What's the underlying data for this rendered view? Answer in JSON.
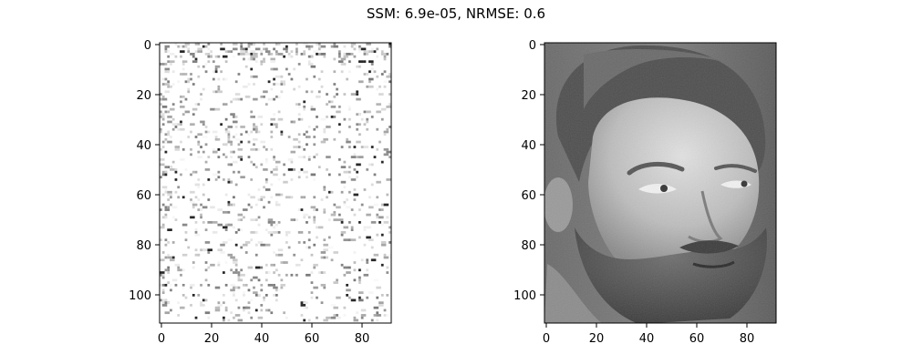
{
  "figure": {
    "title": "SSM: 6.9e-05, NRMSE: 0.6"
  },
  "panels": [
    {
      "name": "left",
      "content": "sparse-noise-image",
      "x_ticks": [
        "0",
        "20",
        "40",
        "60",
        "80"
      ],
      "y_ticks": [
        "0",
        "20",
        "40",
        "60",
        "80",
        "100"
      ]
    },
    {
      "name": "right",
      "content": "grayscale-face-photo",
      "x_ticks": [
        "0",
        "20",
        "40",
        "60",
        "80"
      ],
      "y_ticks": [
        "0",
        "20",
        "40",
        "60",
        "80",
        "100"
      ]
    }
  ],
  "colors": {
    "background": "#ffffff",
    "axes": "#000000",
    "noise_dark": "#1a1a1a",
    "face_skin": "#c8c8c8",
    "face_hair": "#5a5a5a",
    "face_background": "#707070"
  }
}
